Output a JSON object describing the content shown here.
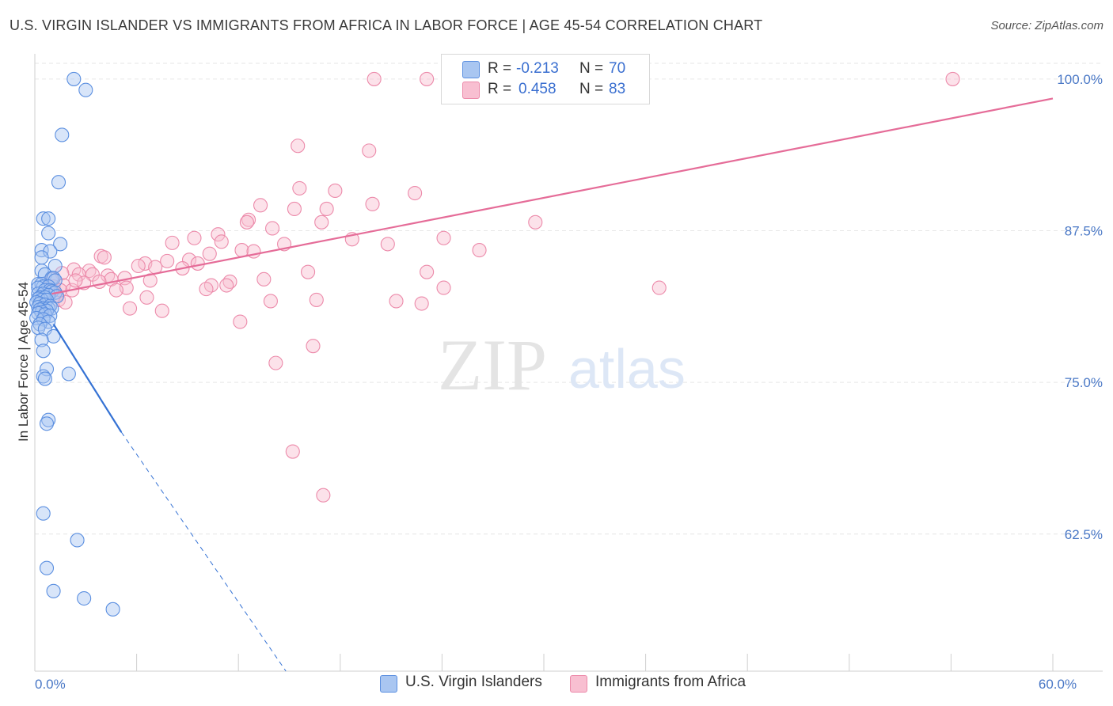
{
  "title": "U.S. VIRGIN ISLANDER VS IMMIGRANTS FROM AFRICA IN LABOR FORCE | AGE 45-54 CORRELATION CHART",
  "source": "Source: ZipAtlas.com",
  "watermark": {
    "zip": "ZIP",
    "atlas": "atlas"
  },
  "legend": {
    "r_label": "R =",
    "n_label": "N =",
    "series": [
      {
        "name": "U.S. Virgin Islanders",
        "r": "-0.213",
        "n": "70"
      },
      {
        "name": "Immigrants from Africa",
        "r": "0.458",
        "n": "83"
      }
    ]
  },
  "chart_data": {
    "type": "scatter",
    "title": "U.S. VIRGIN ISLANDER VS IMMIGRANTS FROM AFRICA IN LABOR FORCE | AGE 45-54 CORRELATION CHART",
    "xlabel": "",
    "ylabel": "In Labor Force | Age 45-54",
    "xlim": [
      0,
      60
    ],
    "ylim": [
      51.2,
      101.3
    ],
    "x_ticks": [
      0,
      6,
      12,
      18,
      24,
      30,
      36,
      42,
      48,
      54,
      60
    ],
    "x_tick_labels": {
      "0": "0.0%",
      "60": "60.0%"
    },
    "y_ticks": [
      62.5,
      75.0,
      87.5,
      100.0
    ],
    "y_tick_labels": [
      "62.5%",
      "75.0%",
      "87.5%",
      "100.0%"
    ],
    "grid": true,
    "colors": {
      "virgin_fill": "#a9c6f1",
      "virgin_stroke": "#5b8fe0",
      "virgin_line": "#3572d4",
      "africa_fill": "#f8bfd1",
      "africa_stroke": "#ec8aaa",
      "africa_line": "#e56c98",
      "grid": "#e6e6e6",
      "axis_text": "#4a78c6"
    },
    "series": [
      {
        "name": "U.S. Virgin Islanders",
        "points": [
          [
            2.3,
            100.0
          ],
          [
            3.0,
            99.1
          ],
          [
            1.6,
            95.4
          ],
          [
            1.4,
            91.5
          ],
          [
            0.5,
            88.5
          ],
          [
            0.8,
            88.5
          ],
          [
            0.8,
            87.3
          ],
          [
            1.5,
            86.4
          ],
          [
            0.4,
            85.9
          ],
          [
            0.9,
            85.8
          ],
          [
            0.4,
            85.3
          ],
          [
            1.2,
            84.6
          ],
          [
            0.4,
            84.2
          ],
          [
            0.6,
            83.9
          ],
          [
            1.0,
            83.6
          ],
          [
            1.1,
            83.6
          ],
          [
            1.2,
            83.4
          ],
          [
            0.2,
            83.1
          ],
          [
            0.4,
            83.1
          ],
          [
            0.5,
            82.9
          ],
          [
            0.8,
            82.9
          ],
          [
            0.2,
            82.8
          ],
          [
            0.6,
            82.6
          ],
          [
            0.9,
            82.6
          ],
          [
            1.0,
            82.5
          ],
          [
            1.2,
            82.4
          ],
          [
            0.2,
            82.3
          ],
          [
            0.5,
            82.3
          ],
          [
            0.8,
            82.2
          ],
          [
            1.3,
            82.1
          ],
          [
            0.3,
            82.0
          ],
          [
            0.6,
            82.0
          ],
          [
            0.2,
            81.9
          ],
          [
            0.4,
            81.8
          ],
          [
            0.7,
            81.8
          ],
          [
            0.1,
            81.6
          ],
          [
            0.3,
            81.5
          ],
          [
            0.6,
            81.4
          ],
          [
            0.9,
            81.3
          ],
          [
            0.2,
            81.2
          ],
          [
            0.5,
            81.1
          ],
          [
            0.8,
            81.1
          ],
          [
            1.0,
            81.1
          ],
          [
            0.3,
            81.0
          ],
          [
            0.7,
            80.9
          ],
          [
            0.4,
            80.8
          ],
          [
            0.2,
            80.7
          ],
          [
            0.6,
            80.6
          ],
          [
            0.9,
            80.5
          ],
          [
            0.1,
            80.3
          ],
          [
            0.5,
            80.2
          ],
          [
            0.8,
            80.0
          ],
          [
            0.3,
            79.8
          ],
          [
            0.2,
            79.5
          ],
          [
            0.6,
            79.4
          ],
          [
            1.1,
            78.8
          ],
          [
            0.4,
            78.5
          ],
          [
            0.5,
            77.6
          ],
          [
            0.7,
            76.1
          ],
          [
            2.0,
            75.7
          ],
          [
            0.5,
            75.5
          ],
          [
            0.6,
            75.3
          ],
          [
            0.8,
            71.9
          ],
          [
            0.7,
            71.6
          ],
          [
            0.5,
            64.2
          ],
          [
            2.5,
            62.0
          ],
          [
            0.7,
            59.7
          ],
          [
            1.1,
            57.8
          ],
          [
            2.9,
            57.2
          ],
          [
            4.6,
            56.3
          ]
        ],
        "trend": {
          "solid": [
            [
              1.1,
              79.8
            ],
            [
              5.1,
              70.9
            ]
          ],
          "dashed": [
            [
              5.1,
              70.9
            ],
            [
              14.8,
              51.2
            ]
          ]
        }
      },
      {
        "name": "Immigrants from Africa",
        "points": [
          [
            20.0,
            100.0
          ],
          [
            23.1,
            100.0
          ],
          [
            54.1,
            100.0
          ],
          [
            15.5,
            94.5
          ],
          [
            19.7,
            94.1
          ],
          [
            15.6,
            91.0
          ],
          [
            17.7,
            90.8
          ],
          [
            22.4,
            90.6
          ],
          [
            19.9,
            89.7
          ],
          [
            13.3,
            89.6
          ],
          [
            15.3,
            89.3
          ],
          [
            17.2,
            89.3
          ],
          [
            12.6,
            88.4
          ],
          [
            12.5,
            88.2
          ],
          [
            16.9,
            88.2
          ],
          [
            29.5,
            88.2
          ],
          [
            14.0,
            87.7
          ],
          [
            10.8,
            87.2
          ],
          [
            9.4,
            86.9
          ],
          [
            11.0,
            86.6
          ],
          [
            18.7,
            86.8
          ],
          [
            24.1,
            86.9
          ],
          [
            8.1,
            86.5
          ],
          [
            14.7,
            86.4
          ],
          [
            20.8,
            86.4
          ],
          [
            26.2,
            85.9
          ],
          [
            12.2,
            85.9
          ],
          [
            12.9,
            85.8
          ],
          [
            10.3,
            85.6
          ],
          [
            3.9,
            85.4
          ],
          [
            4.1,
            85.3
          ],
          [
            9.1,
            85.1
          ],
          [
            7.8,
            85.0
          ],
          [
            6.5,
            84.8
          ],
          [
            9.6,
            84.8
          ],
          [
            6.1,
            84.6
          ],
          [
            7.1,
            84.5
          ],
          [
            8.7,
            84.4
          ],
          [
            2.3,
            84.3
          ],
          [
            3.2,
            84.2
          ],
          [
            16.1,
            84.1
          ],
          [
            23.1,
            84.1
          ],
          [
            1.6,
            84.0
          ],
          [
            2.6,
            83.9
          ],
          [
            3.4,
            83.9
          ],
          [
            4.3,
            83.8
          ],
          [
            5.3,
            83.6
          ],
          [
            1.0,
            83.5
          ],
          [
            4.5,
            83.5
          ],
          [
            6.8,
            83.4
          ],
          [
            13.5,
            83.5
          ],
          [
            11.5,
            83.3
          ],
          [
            2.9,
            83.2
          ],
          [
            1.7,
            83.0
          ],
          [
            10.4,
            83.0
          ],
          [
            11.3,
            83.0
          ],
          [
            1.1,
            82.9
          ],
          [
            5.4,
            82.8
          ],
          [
            10.1,
            82.7
          ],
          [
            2.2,
            82.6
          ],
          [
            4.8,
            82.6
          ],
          [
            24.1,
            82.8
          ],
          [
            36.8,
            82.8
          ],
          [
            0.9,
            82.4
          ],
          [
            1.3,
            82.2
          ],
          [
            6.6,
            82.0
          ],
          [
            16.6,
            81.8
          ],
          [
            1.4,
            81.8
          ],
          [
            13.9,
            81.7
          ],
          [
            21.3,
            81.7
          ],
          [
            1.8,
            81.6
          ],
          [
            22.8,
            81.5
          ],
          [
            5.6,
            81.1
          ],
          [
            7.5,
            80.9
          ],
          [
            12.1,
            80.0
          ],
          [
            16.4,
            78.0
          ],
          [
            14.2,
            76.6
          ],
          [
            15.2,
            69.3
          ],
          [
            17.0,
            65.7
          ],
          [
            0.6,
            82.1
          ],
          [
            1.5,
            82.6
          ],
          [
            2.4,
            83.4
          ],
          [
            3.8,
            83.3
          ]
        ],
        "trend": {
          "solid": [
            [
              1.0,
              82.3
            ],
            [
              60.0,
              98.4
            ]
          ]
        }
      }
    ]
  }
}
